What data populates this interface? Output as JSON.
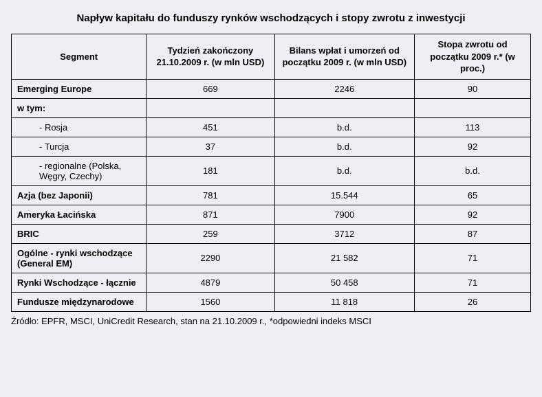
{
  "title": "Napływ kapitału do funduszy rynków wschodzących i stopy zwrotu z inwestycji",
  "columns": {
    "c0": "Segment",
    "c1": "Tydzień zakończony 21.10.2009 r. (w mln USD)",
    "c2": "Bilans wpłat i umorzeń od początku 2009 r. (w mln USD)",
    "c3": "Stopa zwrotu od początku 2009 r.* (w proc.)"
  },
  "rows": [
    {
      "label": "Emerging Europe",
      "bold": true,
      "sub": false,
      "c1": "669",
      "c2": "2246",
      "c3": "90"
    },
    {
      "label": "w tym:",
      "bold": true,
      "sub": false,
      "c1": "",
      "c2": "",
      "c3": ""
    },
    {
      "label": "- Rosja",
      "bold": false,
      "sub": true,
      "c1": "451",
      "c2": "b.d.",
      "c3": "113"
    },
    {
      "label": "- Turcja",
      "bold": false,
      "sub": true,
      "c1": "37",
      "c2": "b.d.",
      "c3": "92"
    },
    {
      "label": "- regionalne (Polska, Węgry, Czechy)",
      "bold": false,
      "sub": true,
      "c1": "181",
      "c2": "b.d.",
      "c3": "b.d."
    },
    {
      "label": "Azja (bez Japonii)",
      "bold": true,
      "sub": false,
      "c1": "781",
      "c2": "15.544",
      "c3": "65"
    },
    {
      "label": "Ameryka Łacińska",
      "bold": true,
      "sub": false,
      "c1": "871",
      "c2": "7900",
      "c3": "92"
    },
    {
      "label": "BRIC",
      "bold": true,
      "sub": false,
      "c1": "259",
      "c2": "3712",
      "c3": "87"
    },
    {
      "label": "Ogólne - rynki wschodzące (General EM)",
      "bold": true,
      "sub": false,
      "c1": "2290",
      "c2": "21 582",
      "c3": "71"
    },
    {
      "label": "Rynki Wschodzące - łącznie",
      "bold": true,
      "sub": false,
      "c1": "4879",
      "c2": "50 458",
      "c3": "71"
    },
    {
      "label": "Fundusze międzynarodowe",
      "bold": true,
      "sub": false,
      "c1": "1560",
      "c2": "11 818",
      "c3": "26"
    }
  ],
  "footnote": "Źródło: EPFR, MSCI, UniCredit Research, stan na 21.10.2009 r., *odpowiedni indeks MSCI",
  "style": {
    "background_color": "#f0eef5",
    "border_color": "#000000",
    "title_fontsize": 15,
    "cell_fontsize": 13
  }
}
